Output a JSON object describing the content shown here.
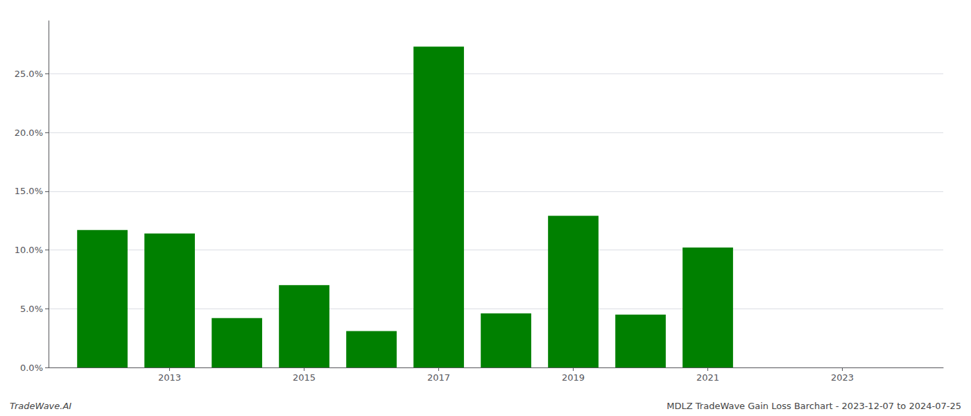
{
  "chart_data": {
    "type": "bar",
    "x": [
      2012,
      2013,
      2014,
      2015,
      2016,
      2017,
      2018,
      2019,
      2020,
      2021,
      2022,
      2023
    ],
    "values": [
      0.117,
      0.114,
      0.042,
      0.07,
      0.031,
      0.273,
      0.046,
      0.129,
      0.045,
      0.102,
      0.0,
      0.0
    ],
    "color": "#008000",
    "xlim": [
      2011.2,
      2024.5
    ],
    "xticks": [
      2013,
      2015,
      2017,
      2019,
      2021,
      2023
    ],
    "ylim": [
      0,
      0.295
    ],
    "yticks": [
      {
        "value": 0.0,
        "label": "0.0%"
      },
      {
        "value": 0.05,
        "label": "5.0%"
      },
      {
        "value": 0.1,
        "label": "10.0%"
      },
      {
        "value": 0.15,
        "label": "15.0%"
      },
      {
        "value": 0.2,
        "label": "20.0%"
      },
      {
        "value": 0.25,
        "label": "25.0%"
      }
    ],
    "grid": true,
    "annotations": [
      "TradeWave.AI",
      "MDLZ TradeWave Gain Loss Barchart - 2023-12-07 to 2024-07-25"
    ]
  }
}
